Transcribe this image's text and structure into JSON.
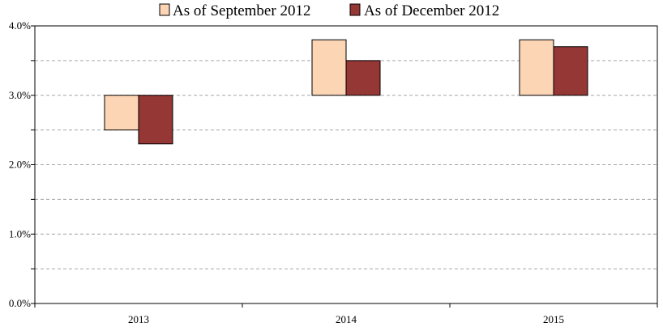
{
  "chart_data": {
    "type": "bar",
    "subtype": "floating-range",
    "categories": [
      "2013",
      "2014",
      "2015"
    ],
    "series": [
      {
        "name": "As of September 2012",
        "color": "#FCD5B5",
        "ranges": [
          [
            2.5,
            3.0
          ],
          [
            3.0,
            3.8
          ],
          [
            3.0,
            3.8
          ]
        ]
      },
      {
        "name": "As of December 2012",
        "color": "#953735",
        "ranges": [
          [
            2.3,
            3.0
          ],
          [
            3.0,
            3.5
          ],
          [
            3.0,
            3.7
          ]
        ]
      }
    ],
    "y_ticks": [
      "0.0%",
      "1.0%",
      "2.0%",
      "3.0%",
      "4.0%"
    ],
    "y_tick_values": [
      0,
      1,
      2,
      3,
      4
    ],
    "ylim": [
      0,
      4
    ],
    "grid": {
      "y_major": true,
      "y_minor": true,
      "style": "dashed"
    },
    "legend_position": "top-center",
    "title": "",
    "xlabel": "",
    "ylabel": ""
  }
}
